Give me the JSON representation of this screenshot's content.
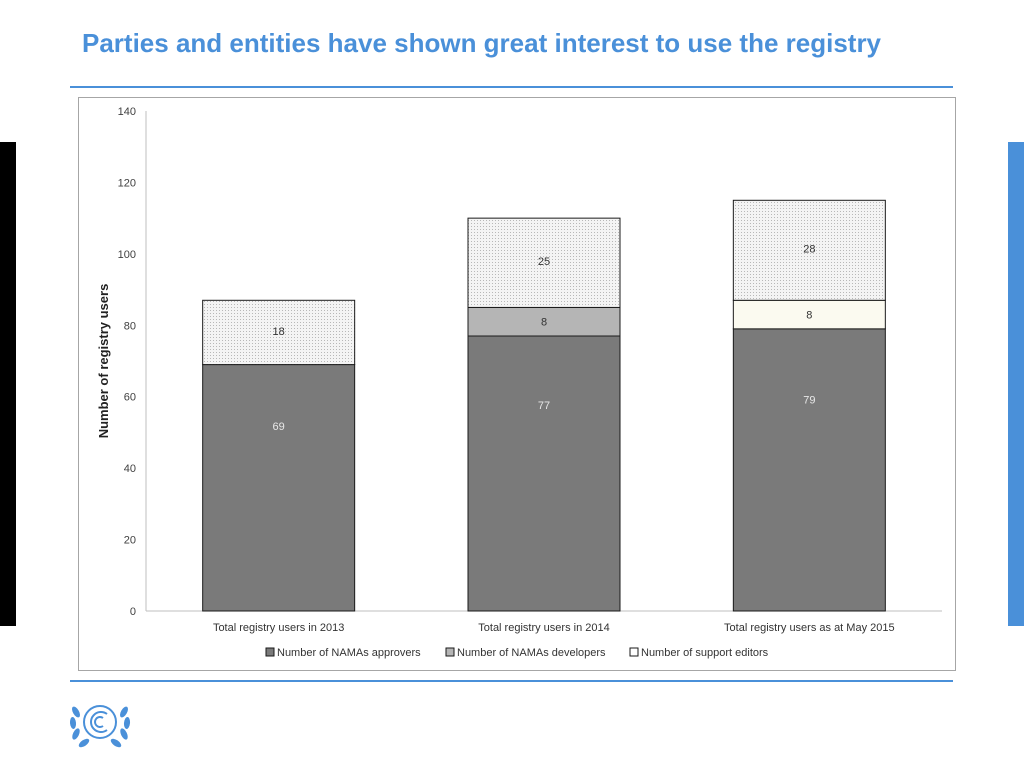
{
  "title": "Parties and entities have shown great interest to use the registry",
  "colors": {
    "accent": "#4a90d9",
    "approvers": "#7a7a7a",
    "developers": "#b5b5b5",
    "editors_plain": "#fbfaf0"
  },
  "logo": {
    "name": "unfccc-logo"
  },
  "chart_data": {
    "type": "bar",
    "stacked": true,
    "categories": [
      "Total registry users in 2013",
      "Total registry users in 2014",
      "Total registry users as at May 2015"
    ],
    "series": [
      {
        "name": "Number of NAMAs approvers",
        "values": [
          69,
          77,
          79
        ],
        "labels": [
          "69",
          "77",
          "79"
        ],
        "color": "#7a7a7a"
      },
      {
        "name": "Number of NAMAs developers",
        "values": [
          0,
          8,
          8
        ],
        "labels": [
          "",
          "8",
          "8"
        ],
        "color": "#b5b5b5"
      },
      {
        "name": "Number of support editors",
        "values": [
          18,
          25,
          28
        ],
        "labels": [
          "18",
          "25",
          "28"
        ],
        "color": "#f4f4f4"
      }
    ],
    "ylabel": "Number of registry users",
    "xlabel": "",
    "ylim": [
      0,
      140
    ],
    "yticks": [
      "0",
      "20",
      "40",
      "60",
      "80",
      "100",
      "120",
      "140"
    ],
    "grid": false,
    "legend": "bottom"
  }
}
